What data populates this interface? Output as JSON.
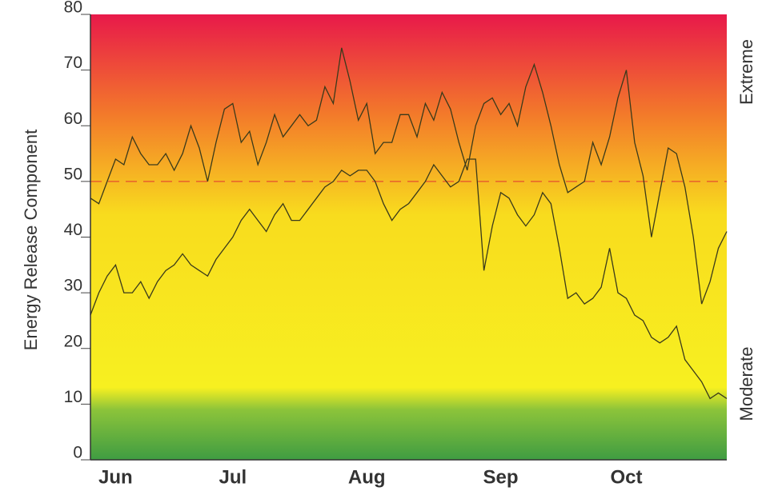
{
  "chart_data": {
    "type": "line",
    "y_label": "Energy Release Component",
    "annotations": [
      "Extreme",
      "Moderate"
    ],
    "categories": [
      null,
      null,
      null,
      "Jun",
      null,
      null,
      null,
      null,
      null,
      null,
      null,
      null,
      null,
      null,
      null,
      null,
      null,
      "Jul",
      null,
      null,
      null,
      null,
      null,
      null,
      null,
      null,
      null,
      null,
      null,
      null,
      null,
      null,
      null,
      "Aug",
      null,
      null,
      null,
      null,
      null,
      null,
      null,
      null,
      null,
      null,
      null,
      null,
      null,
      null,
      null,
      "Sep",
      null,
      null,
      null,
      null,
      null,
      null,
      null,
      null,
      null,
      null,
      null,
      null,
      null,
      null,
      "Oct",
      null,
      null,
      null,
      null,
      null,
      null,
      null,
      null,
      null,
      null,
      null,
      null
    ],
    "series": [
      {
        "color": "#3a3a1a",
        "values": [
          47,
          46,
          50,
          54,
          53,
          58,
          55,
          53,
          53,
          55,
          52,
          55,
          60,
          56,
          50,
          57,
          63,
          64,
          57,
          59,
          53,
          57,
          62,
          58,
          60,
          62,
          60,
          61,
          67,
          64,
          74,
          68,
          61,
          64,
          55,
          57,
          57,
          62,
          62,
          58,
          64,
          61,
          66,
          63,
          57,
          52,
          60,
          64,
          65,
          62,
          64,
          60,
          67,
          71,
          66,
          60,
          53,
          48,
          49,
          50,
          57,
          53,
          58,
          65,
          70,
          57,
          51,
          40,
          48,
          56,
          55,
          49,
          40,
          28,
          32,
          38,
          41
        ]
      },
      {
        "color": "#3a3a1a",
        "values": [
          26,
          30,
          33,
          35,
          30,
          30,
          32,
          29,
          32,
          34,
          35,
          37,
          35,
          34,
          33,
          36,
          38,
          40,
          43,
          45,
          43,
          41,
          44,
          46,
          43,
          43,
          45,
          47,
          49,
          50,
          52,
          51,
          52,
          52,
          50,
          46,
          43,
          45,
          46,
          48,
          50,
          53,
          51,
          49,
          50,
          54,
          54,
          34,
          42,
          48,
          47,
          44,
          42,
          44,
          48,
          46,
          38,
          29,
          30,
          28,
          29,
          31,
          38,
          30,
          29,
          26,
          25,
          22,
          21,
          22,
          24,
          18,
          16,
          14,
          11,
          12,
          11
        ]
      }
    ],
    "reference_line": {
      "value": 50,
      "color": "#e8602c",
      "dashed": true
    },
    "background": [
      {
        "value": 80,
        "color": "#e8194a"
      },
      {
        "value": 62,
        "color": "#f37a2a"
      },
      {
        "value": 44,
        "color": "#f8dc1e"
      },
      {
        "value": 13,
        "color": "#f7f020"
      },
      {
        "value": 9,
        "color": "#8cc43a"
      },
      {
        "value": 0,
        "color": "#3f9c42"
      }
    ],
    "ylim": [
      0,
      80
    ],
    "yticks": [
      0,
      10,
      20,
      30,
      40,
      50,
      60,
      70,
      80
    ]
  }
}
